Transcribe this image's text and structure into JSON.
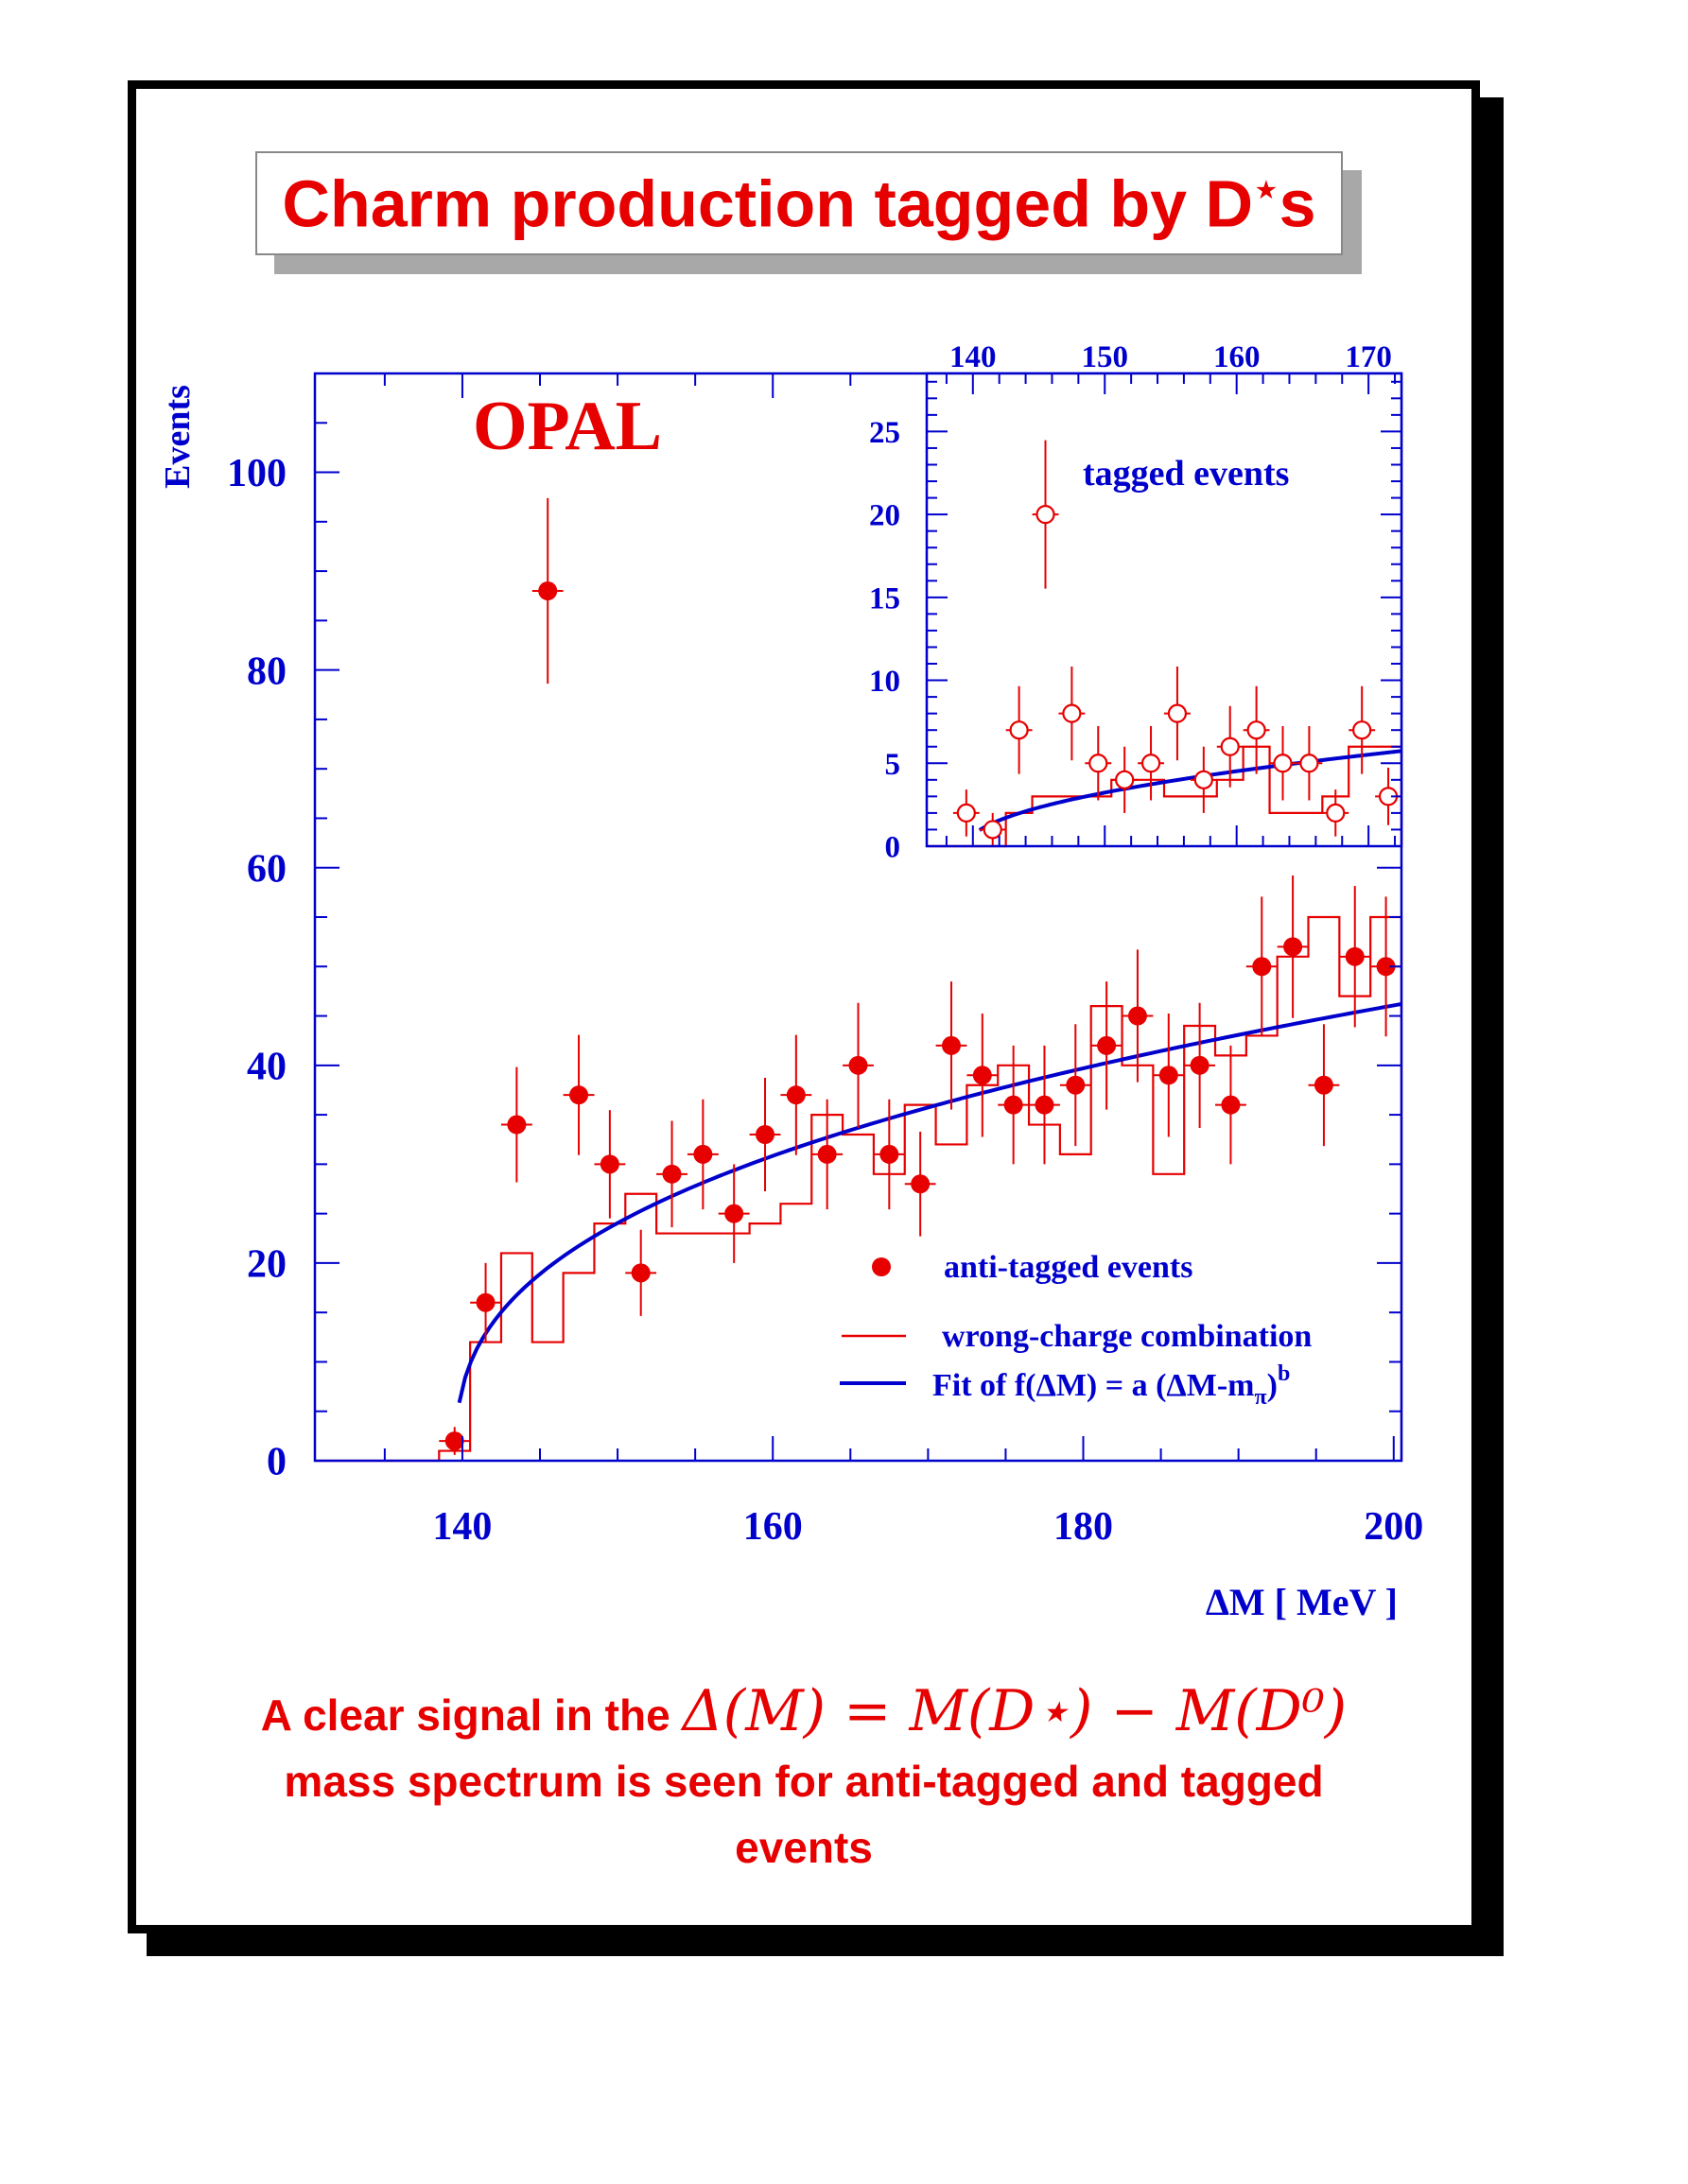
{
  "title": {
    "main": "Charm production tagged by D",
    "sup": "⋆",
    "suffix": "s"
  },
  "caption": {
    "line1_prefix": "A clear signal in the",
    "line1_math": "Δ(M) = M(D⋆) − M(D⁰)",
    "line2": "mass spectrum is seen for anti-tagged and tagged",
    "line3": "events"
  },
  "colors": {
    "data": "#e60000",
    "axis": "#0000cc",
    "fit": "#0000cc",
    "title": "#e60000"
  },
  "chart_data": [
    {
      "type": "scatter",
      "panel": "main",
      "label": "OPAL",
      "xlabel": "ΔM [ MeV ]",
      "ylabel": "Events",
      "xlim": [
        130.5,
        200.5
      ],
      "ylim": [
        0,
        110
      ],
      "x_ticks": [
        140,
        160,
        180,
        200
      ],
      "y_ticks": [
        0,
        20,
        40,
        60,
        80,
        100
      ],
      "legend": {
        "position": "bottom-right",
        "data_label": "anti-tagged events",
        "hist_label": "wrong-charge combination",
        "fit_label_prefix": "Fit of f(ΔM) = a (ΔM-m",
        "fit_label_sub": "π",
        "fit_label_mid": ")",
        "fit_label_sup": "b"
      },
      "series": [
        {
          "name": "anti-tagged events",
          "x": [
            139.5,
            141.5,
            143.5,
            145.5,
            147.5,
            149.5,
            151.5,
            153.5,
            155.5,
            157.5,
            159.5,
            161.5,
            163.5,
            165.5,
            167.5,
            169.5,
            171.5,
            173.5,
            175.5,
            177.5,
            179.5,
            181.5,
            183.5,
            185.5,
            187.5,
            189.5,
            191.5,
            193.5,
            195.5,
            197.5,
            199.5
          ],
          "y": [
            2,
            16,
            34,
            88,
            37,
            30,
            19,
            29,
            31,
            25,
            33,
            37,
            31,
            40,
            31,
            28,
            42,
            39,
            36,
            36,
            38,
            42,
            45,
            39,
            40,
            36,
            50,
            52,
            38,
            51,
            50
          ]
        },
        {
          "name": "wrong-charge combination",
          "bin_edges": [
            138.5,
            140.5,
            142.5,
            144.5,
            146.5,
            148.5,
            150.5,
            152.5,
            154.5,
            156.5,
            158.5,
            160.5,
            162.5,
            164.5,
            166.5,
            168.5,
            170.5,
            172.5,
            174.5,
            176.5,
            178.5,
            180.5,
            182.5,
            184.5,
            186.5,
            188.5,
            190.5,
            192.5,
            194.5,
            196.5,
            198.5,
            200.5
          ],
          "values": [
            1,
            12,
            21,
            12,
            19,
            24,
            27,
            23,
            23,
            23,
            24,
            26,
            35,
            33,
            29,
            36,
            32,
            38,
            40,
            34,
            31,
            46,
            40,
            29,
            44,
            41,
            43,
            51,
            55,
            47,
            55
          ]
        },
        {
          "name": "Fit of f(ΔM) = a (ΔM-mπ)b",
          "fit": {
            "a": 10.1,
            "b": 0.37,
            "m_pi": 139.57,
            "x_from": 139.8,
            "x_to": 200.5
          }
        }
      ]
    },
    {
      "type": "scatter",
      "panel": "inset",
      "label": "tagged events",
      "xlim": [
        136.5,
        172.5
      ],
      "ylim": [
        0,
        28.5
      ],
      "x_ticks": [
        140,
        150,
        160,
        170
      ],
      "y_ticks": [
        0,
        5,
        10,
        15,
        20,
        25
      ],
      "series": [
        {
          "name": "tagged events",
          "x": [
            139.5,
            141.5,
            143.5,
            145.5,
            147.5,
            149.5,
            151.5,
            153.5,
            155.5,
            157.5,
            159.5,
            161.5,
            163.5,
            165.5,
            167.5,
            169.5,
            171.5
          ],
          "y": [
            2,
            1,
            7,
            20,
            8,
            5,
            4,
            5,
            8,
            4,
            6,
            7,
            5,
            5,
            2,
            7,
            3
          ]
        },
        {
          "name": "wrong-charge combination",
          "bin_edges": [
            138.5,
            140.5,
            142.5,
            144.5,
            146.5,
            148.5,
            150.5,
            152.5,
            154.5,
            156.5,
            158.5,
            160.5,
            162.5,
            164.5,
            166.5,
            168.5,
            170.5,
            172.5
          ],
          "values": [
            0,
            0,
            2,
            3,
            3,
            3,
            4,
            4,
            3,
            3,
            4,
            6,
            2,
            2,
            3,
            6,
            6
          ]
        },
        {
          "name": "fit",
          "fit": {
            "a": 1.0,
            "b": 0.5,
            "m_pi": 139.57,
            "x_from": 140.5,
            "x_to": 172.5
          }
        }
      ]
    }
  ]
}
